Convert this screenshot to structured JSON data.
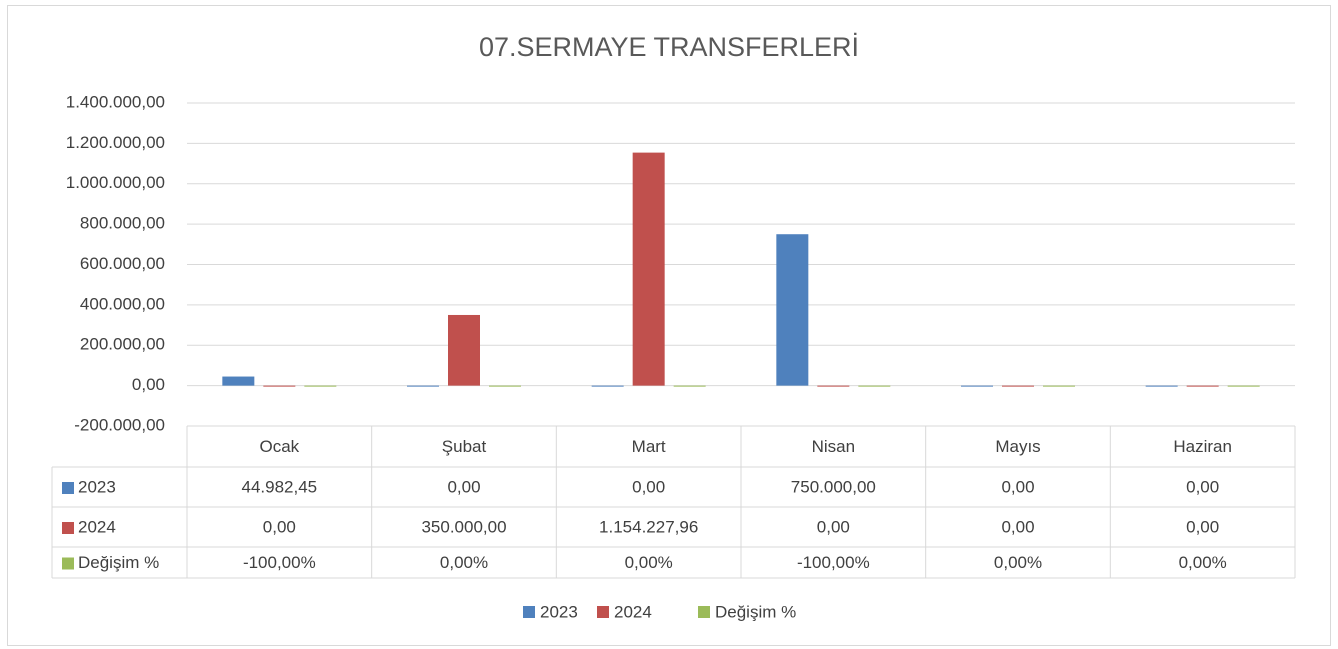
{
  "chart_data": {
    "type": "bar",
    "title": "07.SERMAYE TRANSFERLERİ",
    "categories": [
      "Ocak",
      "Şubat",
      "Mart",
      "Nisan",
      "Mayıs",
      "Haziran"
    ],
    "series": [
      {
        "name": "2023",
        "color": "#4f81bd",
        "values": [
          44982.45,
          0,
          0,
          750000,
          0,
          0
        ],
        "value_labels": [
          "44.982,45",
          "0,00",
          "0,00",
          "750.000,00",
          "0,00",
          "0,00"
        ]
      },
      {
        "name": "2024",
        "color": "#c0504d",
        "values": [
          0,
          350000,
          1154227.96,
          0,
          0,
          0
        ],
        "value_labels": [
          "0,00",
          "350.000,00",
          "1.154.227,96",
          "0,00",
          "0,00",
          "0,00"
        ]
      },
      {
        "name": "Değişim %",
        "color": "#9bbb59",
        "values": [
          -1,
          0,
          0,
          -1,
          0,
          0
        ],
        "value_labels": [
          "-100,00%",
          "0,00%",
          "0,00%",
          "-100,00%",
          "0,00%",
          "0,00%"
        ]
      }
    ],
    "ylim": [
      -200000,
      1400000
    ],
    "yticks": [
      {
        "value": -200000,
        "label": "-200.000,00"
      },
      {
        "value": 0,
        "label": "0,00"
      },
      {
        "value": 200000,
        "label": "200.000,00"
      },
      {
        "value": 400000,
        "label": "400.000,00"
      },
      {
        "value": 600000,
        "label": "600.000,00"
      },
      {
        "value": 800000,
        "label": "800.000,00"
      },
      {
        "value": 1000000,
        "label": "1.000.000,00"
      },
      {
        "value": 1200000,
        "label": "1.200.000,00"
      },
      {
        "value": 1400000,
        "label": "1.400.000,00"
      }
    ],
    "grid": true,
    "legend": "bottom"
  }
}
